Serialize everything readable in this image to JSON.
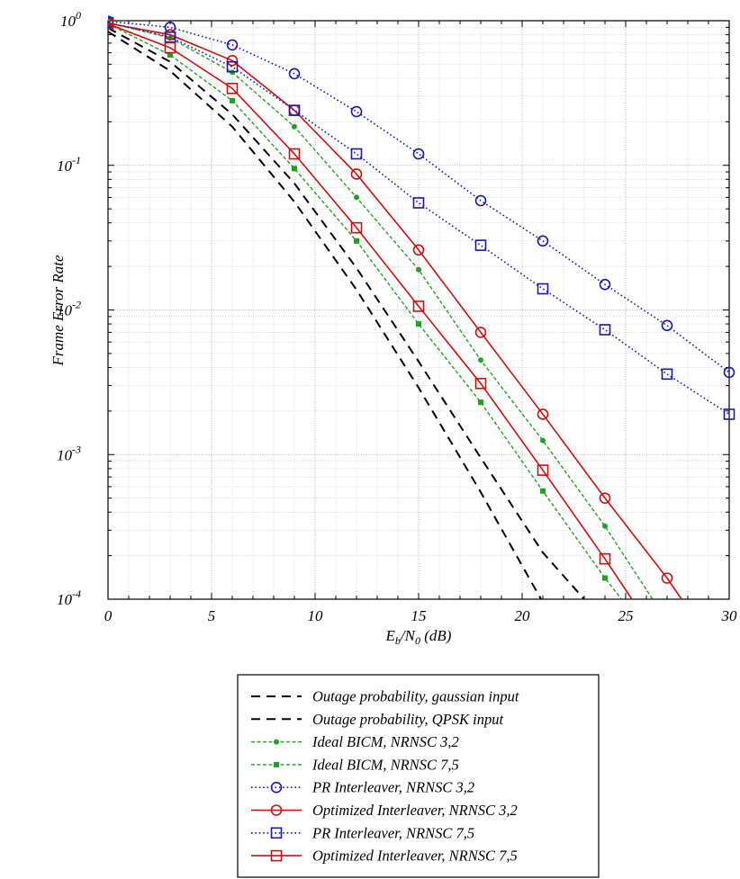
{
  "chart_data": {
    "type": "line",
    "x_scale": "linear",
    "y_scale": "log",
    "xlim": [
      0,
      30
    ],
    "ylim": [
      0.0001,
      1
    ],
    "grid": true,
    "legend_position": "bottom",
    "xlabel_parts": {
      "E": "E",
      "b": "b",
      "slash": "/N",
      "zero": "0",
      "unit": " (dB)"
    },
    "ylabel": "Frame Error Rate",
    "x_ticks": [
      {
        "value": 0,
        "label": "0"
      },
      {
        "value": 5,
        "label": "5"
      },
      {
        "value": 10,
        "label": "10"
      },
      {
        "value": 15,
        "label": "15"
      },
      {
        "value": 20,
        "label": "20"
      },
      {
        "value": 25,
        "label": "25"
      },
      {
        "value": 30,
        "label": "30"
      }
    ],
    "y_ticks": [
      {
        "value": 1,
        "base": "10",
        "exp": "0"
      },
      {
        "value": 0.1,
        "base": "10",
        "exp": "-1"
      },
      {
        "value": 0.01,
        "base": "10",
        "exp": "-2"
      },
      {
        "value": 0.001,
        "base": "10",
        "exp": "-3"
      },
      {
        "value": 0.0001,
        "base": "10",
        "exp": "-4"
      }
    ],
    "series": [
      {
        "name": "Outage probability, gaussian input",
        "color": "#000000",
        "dash": "dashed",
        "marker": "none",
        "width": 2,
        "points": [
          [
            0,
            0.84
          ],
          [
            3,
            0.45
          ],
          [
            6,
            0.185
          ],
          [
            9,
            0.056
          ],
          [
            12,
            0.0138
          ],
          [
            15,
            0.0029
          ],
          [
            18,
            0.00055
          ],
          [
            21,
            9.5e-05
          ]
        ]
      },
      {
        "name": "Outage probability, QPSK input",
        "color": "#000000",
        "dash": "dashed",
        "marker": "none",
        "width": 2,
        "points": [
          [
            0,
            0.89
          ],
          [
            3,
            0.52
          ],
          [
            6,
            0.225
          ],
          [
            9,
            0.075
          ],
          [
            12,
            0.0195
          ],
          [
            15,
            0.0044
          ],
          [
            18,
            0.00095
          ],
          [
            21,
            0.00021
          ],
          [
            23,
            0.0001
          ]
        ]
      },
      {
        "name": "Ideal BICM, NRNSC 3,2",
        "color": "#22a022",
        "dash": "dash-small",
        "marker": "dot",
        "width": 1.4,
        "points": [
          [
            0,
            0.97
          ],
          [
            3,
            0.76
          ],
          [
            6,
            0.44
          ],
          [
            9,
            0.185
          ],
          [
            12,
            0.06
          ],
          [
            15,
            0.019
          ],
          [
            18,
            0.0045
          ],
          [
            21,
            0.00125
          ],
          [
            24,
            0.00032
          ],
          [
            26.3,
            0.0001
          ]
        ]
      },
      {
        "name": "Ideal BICM, NRNSC 7,5",
        "color": "#22a022",
        "dash": "dash-small",
        "marker": "filled-square",
        "width": 1.4,
        "points": [
          [
            0,
            0.95
          ],
          [
            3,
            0.58
          ],
          [
            6,
            0.28
          ],
          [
            9,
            0.095
          ],
          [
            12,
            0.03
          ],
          [
            15,
            0.008
          ],
          [
            18,
            0.0023
          ],
          [
            21,
            0.00056
          ],
          [
            24,
            0.00014
          ],
          [
            24.8,
            0.0001
          ]
        ]
      },
      {
        "name": "PR Interleaver, NRNSC 3,2",
        "color": "#1a1aaa",
        "dash": "dotted",
        "marker": "circle",
        "width": 1.6,
        "points": [
          [
            0,
            0.99
          ],
          [
            3,
            0.9
          ],
          [
            6,
            0.68
          ],
          [
            9,
            0.43
          ],
          [
            12,
            0.235
          ],
          [
            15,
            0.12
          ],
          [
            18,
            0.057
          ],
          [
            21,
            0.03
          ],
          [
            24,
            0.015
          ],
          [
            27,
            0.0078
          ],
          [
            30,
            0.0037
          ]
        ]
      },
      {
        "name": "Optimized Interleaver, NRNSC 3,2",
        "color": "#cc1111",
        "dash": "solid",
        "marker": "circle",
        "width": 1.6,
        "points": [
          [
            0,
            0.96
          ],
          [
            3,
            0.8
          ],
          [
            6,
            0.53
          ],
          [
            9,
            0.24
          ],
          [
            12,
            0.087
          ],
          [
            15,
            0.026
          ],
          [
            18,
            0.007
          ],
          [
            21,
            0.0019
          ],
          [
            24,
            0.0005
          ],
          [
            27,
            0.00014
          ],
          [
            27.7,
            0.0001
          ]
        ]
      },
      {
        "name": "PR Interleaver, NRNSC 7,5",
        "color": "#1a1aaa",
        "dash": "dotted",
        "marker": "square",
        "width": 1.6,
        "points": [
          [
            0,
            0.97
          ],
          [
            3,
            0.77
          ],
          [
            6,
            0.48
          ],
          [
            9,
            0.24
          ],
          [
            12,
            0.12
          ],
          [
            15,
            0.055
          ],
          [
            18,
            0.028
          ],
          [
            21,
            0.014
          ],
          [
            24,
            0.0073
          ],
          [
            27,
            0.0036
          ],
          [
            30,
            0.0019
          ]
        ]
      },
      {
        "name": "Optimized Interleaver, NRNSC 7,5",
        "color": "#cc1111",
        "dash": "solid",
        "marker": "square",
        "width": 1.6,
        "points": [
          [
            0,
            0.95
          ],
          [
            3,
            0.65
          ],
          [
            6,
            0.34
          ],
          [
            9,
            0.12
          ],
          [
            12,
            0.037
          ],
          [
            15,
            0.0106
          ],
          [
            18,
            0.0031
          ],
          [
            21,
            0.00078
          ],
          [
            24,
            0.00019
          ],
          [
            25.3,
            0.0001
          ]
        ]
      }
    ]
  }
}
